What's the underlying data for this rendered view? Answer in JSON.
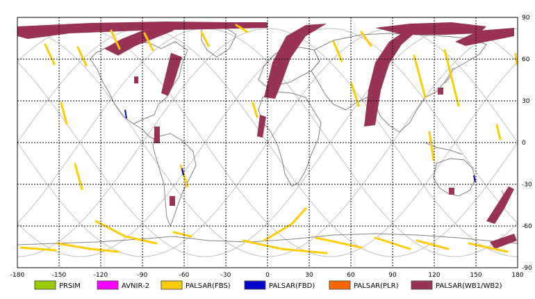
{
  "map": {
    "projection": "equirectangular",
    "lon_range": [
      -180,
      180
    ],
    "lat_range": [
      -90,
      90
    ],
    "grid": "dashed every 30 degrees",
    "x_ticks": [
      "-180",
      "-150",
      "-120",
      "-90",
      "-60",
      "-30",
      "0",
      "30",
      "60",
      "90",
      "120",
      "150",
      "180"
    ],
    "y_ticks": [
      "90",
      "60",
      "30",
      "0",
      "-30",
      "-60",
      "-90"
    ]
  },
  "legend": [
    {
      "label": "PRSIM",
      "color": "#99cc00"
    },
    {
      "label": "AVNIR-2",
      "color": "#ff00ff"
    },
    {
      "label": "PALSAR(FBS)",
      "color": "#ffcc00"
    },
    {
      "label": "PALSAR(FBD)",
      "color": "#0000cc"
    },
    {
      "label": "PALSAR(PLR)",
      "color": "#ff6600"
    },
    {
      "label": "PALSAR(WB1/WB2)",
      "color": "#993355"
    }
  ],
  "colors": {
    "grid": "#000000",
    "coast": "#808080",
    "orbit": "#c8c8c8",
    "frame": "#000000"
  }
}
